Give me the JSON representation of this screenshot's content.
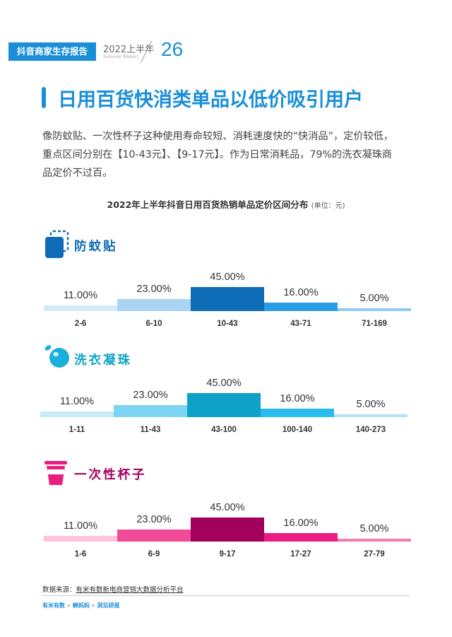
{
  "header": {
    "report_tag": "抖音商家生存报告",
    "year_label": "2022上半年",
    "sub_label": "Survival Report",
    "page_number": "26",
    "accent_color": "#1a8fd8"
  },
  "title": "日用百货快消类单品以低价吸引用户",
  "intro": [
    "像防蚊贴、一次性杯子这种使用寿命较短、消耗速度快的“快消品”，定价较低，",
    "重点区间分别在【10-43元】、【9-17元】。作为日常消耗品，79%的洗衣凝珠商",
    "品定价不过百。"
  ],
  "chart_title": "2022年上半年抖音日用百货热销单品定价区间分布",
  "chart_unit": "(单位：元)",
  "chart_data": [
    {
      "type": "bar",
      "title": "防蚊贴",
      "categories": [
        "2-6",
        "6-10",
        "10-43",
        "43-71",
        "71-169"
      ],
      "values": [
        11.0,
        23.0,
        45.0,
        16.0,
        5.0
      ],
      "value_labels": [
        "11.00%",
        "23.00%",
        "45.00%",
        "16.00%",
        "5.00%"
      ],
      "colors": [
        "#d4e9f7",
        "#a9d4f2",
        "#0f6cb6",
        "#2a9de8",
        "#8ecbf2"
      ]
    },
    {
      "type": "bar",
      "title": "洗衣凝珠",
      "categories": [
        "1-11",
        "11-43",
        "43-100",
        "100-140",
        "140-273"
      ],
      "values": [
        11.0,
        23.0,
        45.0,
        16.0,
        5.0
      ],
      "value_labels": [
        "11.00%",
        "23.00%",
        "45.00%",
        "16.00%",
        "5.00%"
      ],
      "colors": [
        "#c5ecf9",
        "#7cd4f2",
        "#0ea2c8",
        "#28bdee",
        "#b3e4f6"
      ]
    },
    {
      "type": "bar",
      "title": "一次性杯子",
      "categories": [
        "1-6",
        "6-9",
        "9-17",
        "17-27",
        "27-79"
      ],
      "values": [
        11.0,
        23.0,
        45.0,
        16.0,
        5.0
      ],
      "value_labels": [
        "11.00%",
        "23.00%",
        "45.00%",
        "16.00%",
        "5.00%"
      ],
      "colors": [
        "#fbc3dc",
        "#f04a98",
        "#a3005d",
        "#e91e7f",
        "#f37ab4"
      ]
    }
  ],
  "sections": [
    {
      "name": "防蚊贴",
      "color": "#0f6cb6"
    },
    {
      "name": "洗衣凝珠",
      "color": "#0ea2c8"
    },
    {
      "name": "一次性杯子",
      "color": "#a3005d"
    }
  ],
  "source_label": "数据来源：",
  "source_text": "有米有数新电商营销大数据分析平台",
  "footer_logos": [
    "有米有数",
    "蝉妈妈",
    "洞见研报"
  ],
  "footer_sep": "×"
}
